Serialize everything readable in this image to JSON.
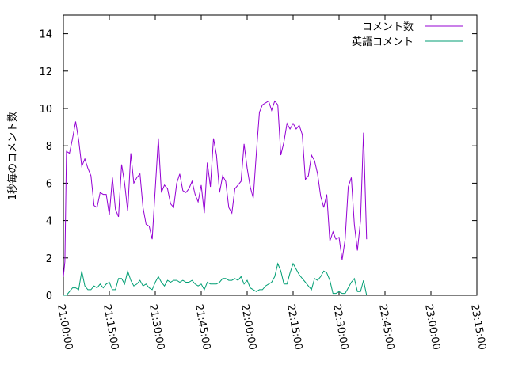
{
  "chart_data": {
    "type": "line",
    "title": "",
    "xlabel": "",
    "ylabel": "1秒毎のコメント数",
    "ylim": [
      0,
      15
    ],
    "yticks": [
      "0",
      "2",
      "4",
      "6",
      "8",
      "10",
      "12",
      "14"
    ],
    "xlim": [
      "21:00:00",
      "23:15:00"
    ],
    "xticks": [
      "21:00:00",
      "21:15:00",
      "21:30:00",
      "21:45:00",
      "22:00:00",
      "22:15:00",
      "22:30:00",
      "22:45:00",
      "23:00:00",
      "23:15:00"
    ],
    "legend_position": "top-right",
    "grid": false,
    "series": [
      {
        "name": "コメント数",
        "color": "#9400d3",
        "points": [
          [
            "21:00:00",
            1.0
          ],
          [
            "21:00:30",
            1.8
          ],
          [
            "21:01:00",
            7.7
          ],
          [
            "21:02:00",
            7.6
          ],
          [
            "21:03:00",
            8.4
          ],
          [
            "21:04:00",
            9.3
          ],
          [
            "21:05:00",
            8.3
          ],
          [
            "21:06:00",
            6.9
          ],
          [
            "21:07:00",
            7.3
          ],
          [
            "21:08:00",
            6.8
          ],
          [
            "21:09:00",
            6.4
          ],
          [
            "21:10:00",
            4.8
          ],
          [
            "21:11:00",
            4.7
          ],
          [
            "21:12:00",
            5.5
          ],
          [
            "21:13:00",
            5.4
          ],
          [
            "21:14:00",
            5.4
          ],
          [
            "21:15:00",
            4.3
          ],
          [
            "21:16:00",
            6.3
          ],
          [
            "21:17:00",
            4.6
          ],
          [
            "21:18:00",
            4.2
          ],
          [
            "21:19:00",
            7.0
          ],
          [
            "21:20:00",
            6.0
          ],
          [
            "21:21:00",
            4.5
          ],
          [
            "21:22:00",
            7.6
          ],
          [
            "21:23:00",
            6.0
          ],
          [
            "21:24:00",
            6.3
          ],
          [
            "21:25:00",
            6.5
          ],
          [
            "21:26:00",
            4.7
          ],
          [
            "21:27:00",
            3.8
          ],
          [
            "21:28:00",
            3.7
          ],
          [
            "21:29:00",
            3.0
          ],
          [
            "21:30:00",
            5.7
          ],
          [
            "21:31:00",
            8.4
          ],
          [
            "21:32:00",
            5.5
          ],
          [
            "21:33:00",
            5.9
          ],
          [
            "21:34:00",
            5.7
          ],
          [
            "21:35:00",
            4.9
          ],
          [
            "21:36:00",
            4.7
          ],
          [
            "21:37:00",
            6.0
          ],
          [
            "21:38:00",
            6.5
          ],
          [
            "21:39:00",
            5.6
          ],
          [
            "21:40:00",
            5.5
          ],
          [
            "21:41:00",
            5.7
          ],
          [
            "21:42:00",
            6.1
          ],
          [
            "21:43:00",
            5.4
          ],
          [
            "21:44:00",
            5.0
          ],
          [
            "21:45:00",
            5.9
          ],
          [
            "21:46:00",
            4.4
          ],
          [
            "21:47:00",
            7.1
          ],
          [
            "21:48:00",
            5.8
          ],
          [
            "21:49:00",
            8.4
          ],
          [
            "21:50:00",
            7.5
          ],
          [
            "21:51:00",
            5.5
          ],
          [
            "21:52:00",
            6.4
          ],
          [
            "21:53:00",
            6.1
          ],
          [
            "21:54:00",
            4.7
          ],
          [
            "21:55:00",
            4.4
          ],
          [
            "21:56:00",
            5.7
          ],
          [
            "21:57:00",
            5.9
          ],
          [
            "21:58:00",
            6.1
          ],
          [
            "21:59:00",
            8.1
          ],
          [
            "22:00:00",
            6.8
          ],
          [
            "22:01:00",
            5.8
          ],
          [
            "22:02:00",
            5.2
          ],
          [
            "22:03:00",
            7.6
          ],
          [
            "22:04:00",
            9.8
          ],
          [
            "22:05:00",
            10.2
          ],
          [
            "22:06:00",
            10.3
          ],
          [
            "22:07:00",
            10.4
          ],
          [
            "22:08:00",
            9.9
          ],
          [
            "22:09:00",
            10.4
          ],
          [
            "22:10:00",
            10.2
          ],
          [
            "22:11:00",
            7.5
          ],
          [
            "22:12:00",
            8.2
          ],
          [
            "22:13:00",
            9.2
          ],
          [
            "22:14:00",
            8.9
          ],
          [
            "22:15:00",
            9.2
          ],
          [
            "22:16:00",
            8.9
          ],
          [
            "22:17:00",
            9.1
          ],
          [
            "22:18:00",
            8.6
          ],
          [
            "22:19:00",
            6.2
          ],
          [
            "22:20:00",
            6.4
          ],
          [
            "22:21:00",
            7.5
          ],
          [
            "22:22:00",
            7.2
          ],
          [
            "22:23:00",
            6.5
          ],
          [
            "22:24:00",
            5.3
          ],
          [
            "22:25:00",
            4.7
          ],
          [
            "22:26:00",
            5.4
          ],
          [
            "22:27:00",
            2.9
          ],
          [
            "22:28:00",
            3.4
          ],
          [
            "22:29:00",
            3.0
          ],
          [
            "22:30:00",
            3.1
          ],
          [
            "22:31:00",
            1.9
          ],
          [
            "22:32:00",
            3.0
          ],
          [
            "22:33:00",
            5.8
          ],
          [
            "22:34:00",
            6.3
          ],
          [
            "22:35:00",
            3.8
          ],
          [
            "22:36:00",
            2.4
          ],
          [
            "22:37:00",
            4.0
          ],
          [
            "22:38:00",
            8.7
          ],
          [
            "22:39:00",
            3.0
          ]
        ]
      },
      {
        "name": "英語コメント",
        "color": "#009e73",
        "points": [
          [
            "21:00:00",
            0.0
          ],
          [
            "21:01:00",
            0.0
          ],
          [
            "21:02:00",
            0.2
          ],
          [
            "21:03:00",
            0.4
          ],
          [
            "21:04:00",
            0.4
          ],
          [
            "21:05:00",
            0.3
          ],
          [
            "21:06:00",
            1.3
          ],
          [
            "21:07:00",
            0.5
          ],
          [
            "21:08:00",
            0.3
          ],
          [
            "21:09:00",
            0.3
          ],
          [
            "21:10:00",
            0.5
          ],
          [
            "21:11:00",
            0.4
          ],
          [
            "21:12:00",
            0.6
          ],
          [
            "21:13:00",
            0.4
          ],
          [
            "21:14:00",
            0.6
          ],
          [
            "21:15:00",
            0.7
          ],
          [
            "21:16:00",
            0.3
          ],
          [
            "21:17:00",
            0.3
          ],
          [
            "21:18:00",
            0.9
          ],
          [
            "21:19:00",
            0.9
          ],
          [
            "21:20:00",
            0.6
          ],
          [
            "21:21:00",
            1.3
          ],
          [
            "21:22:00",
            0.8
          ],
          [
            "21:23:00",
            0.5
          ],
          [
            "21:24:00",
            0.6
          ],
          [
            "21:25:00",
            0.8
          ],
          [
            "21:26:00",
            0.5
          ],
          [
            "21:27:00",
            0.6
          ],
          [
            "21:28:00",
            0.4
          ],
          [
            "21:29:00",
            0.3
          ],
          [
            "21:30:00",
            0.7
          ],
          [
            "21:31:00",
            1.0
          ],
          [
            "21:32:00",
            0.7
          ],
          [
            "21:33:00",
            0.5
          ],
          [
            "21:34:00",
            0.8
          ],
          [
            "21:35:00",
            0.7
          ],
          [
            "21:36:00",
            0.8
          ],
          [
            "21:37:00",
            0.8
          ],
          [
            "21:38:00",
            0.7
          ],
          [
            "21:39:00",
            0.8
          ],
          [
            "21:40:00",
            0.7
          ],
          [
            "21:41:00",
            0.7
          ],
          [
            "21:42:00",
            0.8
          ],
          [
            "21:43:00",
            0.6
          ],
          [
            "21:44:00",
            0.5
          ],
          [
            "21:45:00",
            0.6
          ],
          [
            "21:46:00",
            0.3
          ],
          [
            "21:47:00",
            0.7
          ],
          [
            "21:48:00",
            0.6
          ],
          [
            "21:49:00",
            0.6
          ],
          [
            "21:50:00",
            0.6
          ],
          [
            "21:51:00",
            0.7
          ],
          [
            "21:52:00",
            0.9
          ],
          [
            "21:53:00",
            0.9
          ],
          [
            "21:54:00",
            0.8
          ],
          [
            "21:55:00",
            0.8
          ],
          [
            "21:56:00",
            0.9
          ],
          [
            "21:57:00",
            0.8
          ],
          [
            "21:58:00",
            1.0
          ],
          [
            "21:59:00",
            0.6
          ],
          [
            "22:00:00",
            0.8
          ],
          [
            "22:01:00",
            0.4
          ],
          [
            "22:02:00",
            0.3
          ],
          [
            "22:03:00",
            0.2
          ],
          [
            "22:04:00",
            0.3
          ],
          [
            "22:05:00",
            0.3
          ],
          [
            "22:06:00",
            0.5
          ],
          [
            "22:07:00",
            0.6
          ],
          [
            "22:08:00",
            0.7
          ],
          [
            "22:09:00",
            1.0
          ],
          [
            "22:10:00",
            1.7
          ],
          [
            "22:11:00",
            1.3
          ],
          [
            "22:12:00",
            0.6
          ],
          [
            "22:13:00",
            0.6
          ],
          [
            "22:14:00",
            1.2
          ],
          [
            "22:15:00",
            1.7
          ],
          [
            "22:16:00",
            1.4
          ],
          [
            "22:17:00",
            1.1
          ],
          [
            "22:18:00",
            0.9
          ],
          [
            "22:19:00",
            0.7
          ],
          [
            "22:20:00",
            0.5
          ],
          [
            "22:21:00",
            0.3
          ],
          [
            "22:22:00",
            0.9
          ],
          [
            "22:23:00",
            0.8
          ],
          [
            "22:24:00",
            1.0
          ],
          [
            "22:25:00",
            1.3
          ],
          [
            "22:26:00",
            1.2
          ],
          [
            "22:27:00",
            0.8
          ],
          [
            "22:28:00",
            0.1
          ],
          [
            "22:29:00",
            0.1
          ],
          [
            "22:30:00",
            0.2
          ],
          [
            "22:31:00",
            0.1
          ],
          [
            "22:32:00",
            0.1
          ],
          [
            "22:33:00",
            0.4
          ],
          [
            "22:34:00",
            0.7
          ],
          [
            "22:35:00",
            0.9
          ],
          [
            "22:36:00",
            0.2
          ],
          [
            "22:37:00",
            0.2
          ],
          [
            "22:38:00",
            0.8
          ],
          [
            "22:39:00",
            0.0
          ]
        ]
      }
    ]
  }
}
